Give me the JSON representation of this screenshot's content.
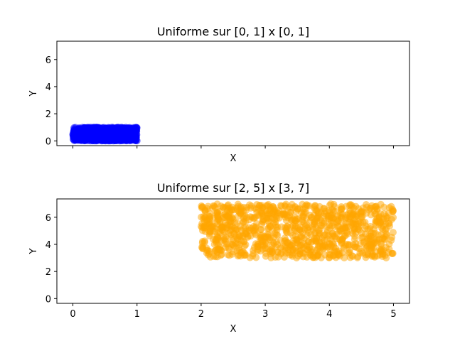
{
  "chart_data": [
    {
      "type": "scatter",
      "title": "Uniforme sur [0, 1] x [0, 1]",
      "xlabel": "X",
      "ylabel": "Y",
      "xlim": [
        -0.25,
        5.25
      ],
      "ylim": [
        -0.35,
        7.35
      ],
      "xticks": [
        0,
        1,
        2,
        3,
        4,
        5
      ],
      "yticks": [
        0,
        2,
        4,
        6
      ],
      "show_xtick_labels": false,
      "grid": false,
      "series": [
        {
          "color": "#0000ff",
          "opacity": 0.5,
          "x_range": [
            0,
            1
          ],
          "y_range": [
            0,
            1
          ],
          "points": 1000
        }
      ]
    },
    {
      "type": "scatter",
      "title": "Uniforme sur [2, 5] x [3, 7]",
      "xlabel": "X",
      "ylabel": "Y",
      "xlim": [
        -0.25,
        5.25
      ],
      "ylim": [
        -0.35,
        7.35
      ],
      "xticks": [
        0,
        1,
        2,
        3,
        4,
        5
      ],
      "yticks": [
        0,
        2,
        4,
        6
      ],
      "show_xtick_labels": true,
      "grid": false,
      "series": [
        {
          "color": "#ffa500",
          "opacity": 0.5,
          "x_range": [
            2,
            5
          ],
          "y_range": [
            3,
            7
          ],
          "points": 1000
        }
      ]
    }
  ]
}
